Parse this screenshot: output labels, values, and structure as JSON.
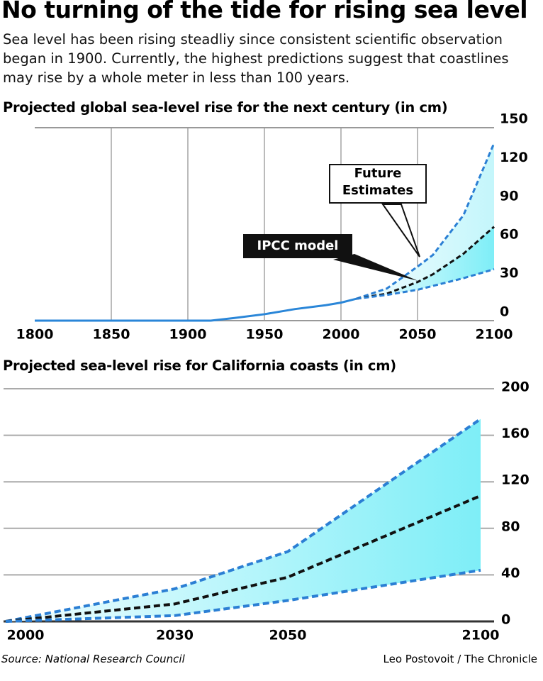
{
  "title": "No turning of the tide for rising sea level",
  "subtitle": "Sea level has been rising steadliy since consistent scientific observation began in 1900. Currently, the highest predictions suggest that coastlines may rise by a whole meter in less than 100 years.",
  "source": "Source: National Research Council",
  "credit": "Leo Postovoit / The Chronicle",
  "chart_data": [
    {
      "type": "line",
      "title": "Projected global sea-level rise for the next century (in cm)",
      "x": [
        1800,
        1850,
        1900,
        1915,
        1930,
        1950,
        1970,
        1990,
        2000,
        2010,
        2030,
        2050,
        2060,
        2080,
        2100
      ],
      "series": [
        {
          "color": "#2a86d8",
          "values": [
            0,
            0,
            0,
            0,
            2,
            5,
            9,
            12,
            14,
            17,
            null,
            null,
            null,
            null,
            null
          ]
        },
        {
          "color": "#2b7fd4",
          "values": [
            null,
            null,
            null,
            null,
            null,
            null,
            null,
            null,
            null,
            17,
            25,
            42,
            51,
            82,
            138
          ]
        },
        {
          "color": "#111111",
          "values": [
            null,
            null,
            null,
            null,
            null,
            null,
            null,
            null,
            null,
            17,
            21,
            30,
            36,
            52,
            73
          ]
        },
        {
          "color": "#2b7fd4",
          "values": [
            null,
            null,
            null,
            null,
            null,
            null,
            null,
            null,
            null,
            17,
            20,
            24,
            27,
            33,
            40
          ]
        }
      ],
      "annotations": [
        "Future Estimates",
        "IPCC model"
      ],
      "xlim": [
        1800,
        2100
      ],
      "xticks": [
        1800,
        1850,
        1900,
        1950,
        2000,
        2050,
        2100
      ],
      "ylim": [
        0,
        150
      ],
      "yticks": [
        0,
        30,
        60,
        90,
        120,
        150
      ],
      "grid": true
    },
    {
      "type": "line",
      "title": "Projected sea-level rise for California coasts (in cm)",
      "categories": [
        "2000",
        "2030",
        "2050",
        "2100"
      ],
      "series": [
        {
          "color": "#2b7fd4",
          "values": [
            0,
            28,
            60,
            174
          ]
        },
        {
          "color": "#111111",
          "values": [
            0,
            15,
            38,
            108
          ]
        },
        {
          "color": "#2b7fd4",
          "values": [
            0,
            5,
            18,
            44
          ]
        }
      ],
      "ylim": [
        0,
        200
      ],
      "yticks": [
        0,
        40,
        80,
        120,
        160,
        200
      ],
      "grid": true
    }
  ]
}
